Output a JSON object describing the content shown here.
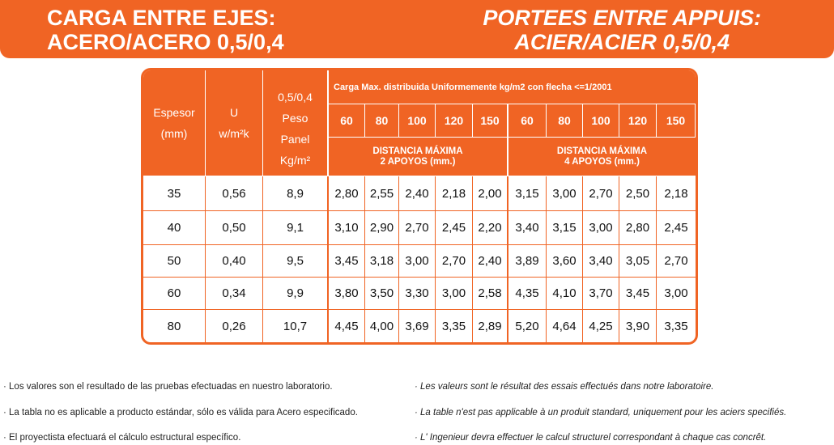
{
  "header": {
    "left": [
      "CARGA ENTRE EJES:",
      "ACERO/ACERO 0,5/0,4"
    ],
    "right": [
      "PORTEES ENTRE APPUIS:",
      "ACIER/ACIER 0,5/0,4"
    ]
  },
  "table": {
    "col_headers": [
      [
        "Espesor",
        "(mm)"
      ],
      [
        "U",
        "w/m²k"
      ],
      [
        "0,5/0,4",
        "Peso",
        "Panel",
        "Kg/m²"
      ]
    ],
    "load_title": "Carga Max. distribuida Uniformemente kg/m2 con flecha <=1/2001",
    "loads": [
      60,
      80,
      100,
      120,
      150,
      60,
      80,
      100,
      120,
      150
    ],
    "groups": [
      [
        "DISTANCIA MÁXIMA",
        "2 APOYOS (mm.)"
      ],
      [
        "DISTANCIA MÁXIMA",
        "4 APOYOS (mm.)"
      ]
    ],
    "rows": [
      [
        "35",
        "0,56",
        "8,9",
        "2,80",
        "2,55",
        "2,40",
        "2,18",
        "2,00",
        "3,15",
        "3,00",
        "2,70",
        "2,50",
        "2,18"
      ],
      [
        "40",
        "0,50",
        "9,1",
        "3,10",
        "2,90",
        "2,70",
        "2,45",
        "2,20",
        "3,40",
        "3,15",
        "3,00",
        "2,80",
        "2,45"
      ],
      [
        "50",
        "0,40",
        "9,5",
        "3,45",
        "3,18",
        "3,00",
        "2,70",
        "2,40",
        "3,89",
        "3,60",
        "3,40",
        "3,05",
        "2,70"
      ],
      [
        "60",
        "0,34",
        "9,9",
        "3,80",
        "3,50",
        "3,30",
        "3,00",
        "2,58",
        "4,35",
        "4,10",
        "3,70",
        "3,45",
        "3,00"
      ],
      [
        "80",
        "0,26",
        "10,7",
        "4,45",
        "4,00",
        "3,69",
        "3,35",
        "2,89",
        "5,20",
        "4,64",
        "4,25",
        "3,90",
        "3,35"
      ]
    ]
  },
  "notes": {
    "es": [
      "· Los valores son el resultado de las pruebas efectuadas en nuestro laboratorio.",
      "· La tabla no es aplicable a producto estándar, sólo es válida para Acero especificado.",
      "· El proyectista efectuará el cálculo estructural específico."
    ],
    "fr": [
      "· Les valeurs sont le résultat des essais effectués dans notre laboratoire.",
      "· La table n'est pas applicable à un produit standard, uniquement pour les aciers specifiés.",
      "· L' Ingenieur devra effectuer le calcul structurel correspondant à chaque cas concrêt."
    ]
  }
}
